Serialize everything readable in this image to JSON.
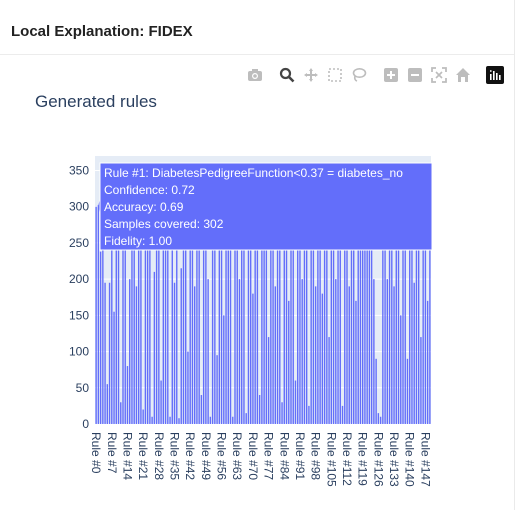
{
  "panel": {
    "title": "Local Explanation: FIDEX"
  },
  "modebar": {
    "icons": [
      "camera-icon",
      "zoom-icon",
      "pan-icon",
      "box-select-icon",
      "lasso-icon",
      "zoom-in-icon",
      "zoom-out-icon",
      "autoscale-icon",
      "reset-axes-icon",
      "plotly-logo-icon"
    ]
  },
  "hover": {
    "lines": [
      "Rule #1: DiabetesPedigreeFunction<0.37  = diabetes_no",
      "Confidence: 0.72",
      "Accuracy: 0.69",
      "Samples covered: 302",
      "Fidelity: 1.00"
    ],
    "color": "#636efa"
  },
  "chart_data": {
    "type": "bar",
    "title": "Generated rules",
    "xlabel": "",
    "ylabel": "",
    "ylim": [
      0,
      370
    ],
    "yticks": [
      0,
      50,
      100,
      150,
      200,
      250,
      300,
      350
    ],
    "xtick_labels": [
      "Rule #0",
      "Rule #7",
      "Rule #14",
      "Rule #21",
      "Rule #28",
      "Rule #35",
      "Rule #42",
      "Rule #49",
      "Rule #56",
      "Rule #63",
      "Rule #70",
      "Rule #77",
      "Rule #84",
      "Rule #91",
      "Rule #98",
      "Rule #105",
      "Rule #112",
      "Rule #119",
      "Rule #126",
      "Rule #133",
      "Rule #140",
      "Rule #147"
    ],
    "grid": true,
    "bar_color": "#636efa",
    "categories_prefix": "Rule #",
    "values": [
      300,
      302,
      238,
      260,
      195,
      55,
      195,
      240,
      155,
      240,
      240,
      30,
      240,
      240,
      80,
      200,
      240,
      240,
      190,
      240,
      240,
      20,
      240,
      240,
      240,
      10,
      210,
      240,
      240,
      60,
      240,
      240,
      240,
      10,
      240,
      195,
      240,
      8,
      215,
      240,
      240,
      100,
      240,
      240,
      190,
      240,
      240,
      40,
      240,
      240,
      200,
      10,
      240,
      240,
      95,
      240,
      240,
      150,
      240,
      240,
      240,
      10,
      240,
      240,
      200,
      240,
      240,
      15,
      240,
      240,
      180,
      240,
      240,
      40,
      240,
      240,
      240,
      120,
      240,
      240,
      190,
      240,
      240,
      30,
      240,
      240,
      170,
      240,
      240,
      60,
      240,
      240,
      200,
      240,
      240,
      25,
      240,
      240,
      190,
      240,
      240,
      180,
      240,
      240,
      120,
      240,
      240,
      200,
      240,
      240,
      25,
      240,
      240,
      190,
      240,
      240,
      170,
      240,
      240,
      240,
      240,
      240,
      240,
      240,
      200,
      90,
      15,
      10,
      240,
      240,
      200,
      240,
      240,
      190,
      240,
      240,
      150,
      240,
      240,
      90,
      240,
      240,
      195,
      240,
      240,
      120,
      240,
      240,
      170,
      240
    ]
  }
}
